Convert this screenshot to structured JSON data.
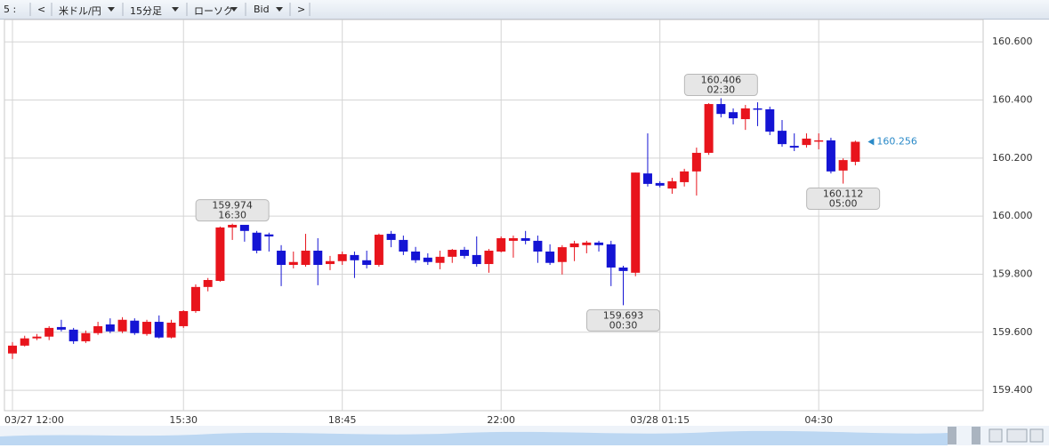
{
  "toolbar": {
    "items": [
      "5 :",
      "<",
      "米ドル/円",
      "15分足",
      "ローソク",
      "Bid",
      ">"
    ]
  },
  "chart_data": {
    "type": "candlestick",
    "categories": [
      "03/27 12:00",
      null,
      null,
      null,
      null,
      null,
      null,
      null,
      null,
      null,
      null,
      null,
      null,
      null,
      "15:30",
      null,
      null,
      null,
      null,
      null,
      null,
      null,
      null,
      null,
      null,
      null,
      null,
      "18:45",
      null,
      null,
      null,
      null,
      null,
      null,
      null,
      null,
      null,
      null,
      null,
      null,
      "22:00",
      null,
      null,
      null,
      null,
      null,
      null,
      null,
      null,
      null,
      null,
      null,
      null,
      "03/28 01:15",
      null,
      null,
      null,
      null,
      null,
      null,
      null,
      null,
      null,
      null,
      null,
      null,
      "04:30",
      null,
      null,
      null
    ],
    "open": [
      159.527,
      159.554,
      159.579,
      159.585,
      159.618,
      159.609,
      159.569,
      159.597,
      159.627,
      159.603,
      159.64,
      159.594,
      159.636,
      159.582,
      159.621,
      159.673,
      159.756,
      159.777,
      159.961,
      159.97,
      159.943,
      159.937,
      159.881,
      159.832,
      159.832,
      159.881,
      159.835,
      159.845,
      159.866,
      159.848,
      159.832,
      159.939,
      159.918,
      159.878,
      159.857,
      159.839,
      159.86,
      159.884,
      159.866,
      159.835,
      159.878,
      159.915,
      159.924,
      159.915,
      159.878,
      159.842,
      159.893,
      159.9,
      159.909,
      159.903,
      159.823,
      159.805,
      160.147,
      160.114,
      160.095,
      160.117,
      160.154,
      160.218,
      160.386,
      160.358,
      160.334,
      160.371,
      160.368,
      160.294,
      160.242,
      160.245,
      160.257,
      160.261,
      160.157,
      160.187
    ],
    "high": [
      159.566,
      159.588,
      159.594,
      159.621,
      159.643,
      159.615,
      159.606,
      159.636,
      159.648,
      159.652,
      159.648,
      159.643,
      159.658,
      159.643,
      159.676,
      159.765,
      159.787,
      159.964,
      159.974,
      159.966,
      159.949,
      159.943,
      159.9,
      159.878,
      159.939,
      159.924,
      159.863,
      159.878,
      159.878,
      159.881,
      159.94,
      159.949,
      159.933,
      159.894,
      159.872,
      159.881,
      159.887,
      159.894,
      159.93,
      159.887,
      159.93,
      159.933,
      159.949,
      159.933,
      159.903,
      159.9,
      159.915,
      159.915,
      159.915,
      159.915,
      159.829,
      160.15,
      160.285,
      160.12,
      160.132,
      160.163,
      160.236,
      160.389,
      160.406,
      160.371,
      160.383,
      160.392,
      160.377,
      160.331,
      160.285,
      160.285,
      160.285,
      160.27,
      160.199,
      160.26
    ],
    "low": [
      159.508,
      159.551,
      159.573,
      159.573,
      159.603,
      159.56,
      159.563,
      159.591,
      159.597,
      159.597,
      159.591,
      159.588,
      159.579,
      159.579,
      159.615,
      159.667,
      159.741,
      159.774,
      159.918,
      159.912,
      159.872,
      159.878,
      159.759,
      159.82,
      159.826,
      159.762,
      159.814,
      159.832,
      159.787,
      159.82,
      159.826,
      159.893,
      159.866,
      159.839,
      159.832,
      159.817,
      159.839,
      159.854,
      159.826,
      159.805,
      159.875,
      159.857,
      159.903,
      159.839,
      159.832,
      159.799,
      159.845,
      159.872,
      159.878,
      159.759,
      159.693,
      159.793,
      160.102,
      160.099,
      160.077,
      160.102,
      160.071,
      160.211,
      160.34,
      160.316,
      160.297,
      160.31,
      160.279,
      160.239,
      160.224,
      160.236,
      160.23,
      160.147,
      160.112,
      160.175
    ],
    "close": [
      159.554,
      159.579,
      159.585,
      159.615,
      159.609,
      159.569,
      159.597,
      159.621,
      159.603,
      159.643,
      159.597,
      159.636,
      159.582,
      159.633,
      159.673,
      159.756,
      159.78,
      159.961,
      159.97,
      159.949,
      159.881,
      159.93,
      159.832,
      159.842,
      159.881,
      159.832,
      159.845,
      159.869,
      159.848,
      159.832,
      159.936,
      159.918,
      159.878,
      159.848,
      159.842,
      159.86,
      159.884,
      159.863,
      159.835,
      159.881,
      159.924,
      159.924,
      159.915,
      159.878,
      159.839,
      159.893,
      159.906,
      159.909,
      159.9,
      159.823,
      159.811,
      160.15,
      160.111,
      160.105,
      160.12,
      160.154,
      160.218,
      160.386,
      160.352,
      160.337,
      160.371,
      160.368,
      160.291,
      160.248,
      160.236,
      160.267,
      160.261,
      160.154,
      160.193,
      160.256
    ],
    "up_color": "#e8141c",
    "down_color": "#1414d4",
    "ylim": [
      159.33,
      160.677
    ],
    "yticks": [
      {
        "value": 159.4,
        "label": "159.400"
      },
      {
        "value": 159.6,
        "label": "159.600"
      },
      {
        "value": 159.8,
        "label": "159.800"
      },
      {
        "value": 160.0,
        "label": "160.000"
      },
      {
        "value": 160.2,
        "label": "160.200"
      },
      {
        "value": 160.4,
        "label": "160.400"
      },
      {
        "value": 160.6,
        "label": "160.600"
      }
    ],
    "grid": true,
    "annotations": [
      {
        "value": 159.974,
        "time": "16:30"
      },
      {
        "value": 159.693,
        "time": "00:30"
      },
      {
        "value": 160.406,
        "time": "02:30"
      },
      {
        "value": 160.112,
        "time": "05:00"
      }
    ],
    "last_price": 160.256,
    "last_price_color": "#2b8ac8"
  }
}
